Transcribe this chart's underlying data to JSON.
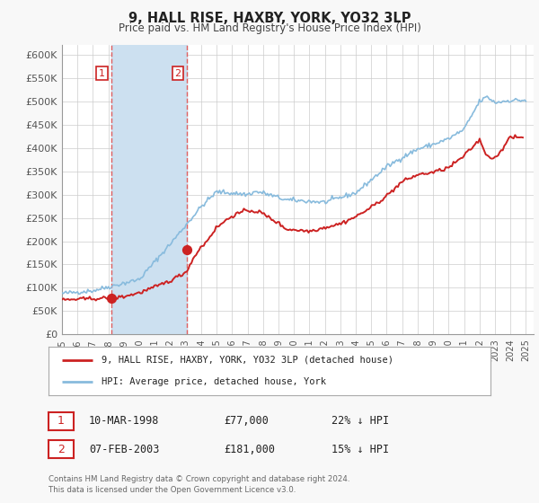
{
  "title": "9, HALL RISE, HAXBY, YORK, YO32 3LP",
  "subtitle": "Price paid vs. HM Land Registry's House Price Index (HPI)",
  "ylim": [
    0,
    620000
  ],
  "yticks": [
    0,
    50000,
    100000,
    150000,
    200000,
    250000,
    300000,
    350000,
    400000,
    450000,
    500000,
    550000,
    600000
  ],
  "ytick_labels": [
    "£0",
    "£50K",
    "£100K",
    "£150K",
    "£200K",
    "£250K",
    "£300K",
    "£350K",
    "£400K",
    "£450K",
    "£500K",
    "£550K",
    "£600K"
  ],
  "xlim_start": 1995.0,
  "xlim_end": 2025.5,
  "sale1_x": 1998.19,
  "sale1_y": 77000,
  "sale1_label": "1",
  "sale2_x": 2003.1,
  "sale2_y": 181000,
  "sale2_label": "2",
  "shade_color": "#cce0f0",
  "vline_color": "#e06060",
  "vline_style": "--",
  "property_line_color": "#cc2222",
  "hpi_line_color": "#88bbdd",
  "legend_box_entry1": "9, HALL RISE, HAXBY, YORK, YO32 3LP (detached house)",
  "legend_box_entry2": "HPI: Average price, detached house, York",
  "table_row1_num": "1",
  "table_row1_date": "10-MAR-1998",
  "table_row1_price": "£77,000",
  "table_row1_hpi": "22% ↓ HPI",
  "table_row2_num": "2",
  "table_row2_date": "07-FEB-2003",
  "table_row2_price": "£181,000",
  "table_row2_hpi": "15% ↓ HPI",
  "footer1": "Contains HM Land Registry data © Crown copyright and database right 2024.",
  "footer2": "This data is licensed under the Open Government Licence v3.0.",
  "bg_color": "#f8f8f8",
  "plot_bg_color": "#ffffff",
  "grid_color": "#cccccc"
}
